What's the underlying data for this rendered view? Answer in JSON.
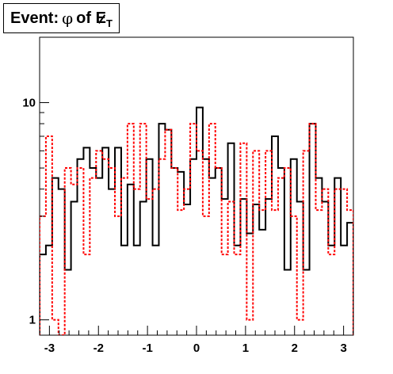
{
  "chart_data": {
    "type": "line",
    "title": {
      "prefix": "Event:",
      "symbol": "φ",
      "middle": "of",
      "quantity": "E",
      "subscript": "T"
    },
    "xlabel": "",
    "ylabel": "",
    "xlim": [
      -3.2,
      3.2
    ],
    "ylim": [
      0.85,
      20
    ],
    "ylog": true,
    "grid": false,
    "x_ticks": [
      {
        "v": -3,
        "label": "-3"
      },
      {
        "v": -2,
        "label": "-2"
      },
      {
        "v": -1,
        "label": "-1"
      },
      {
        "v": 0,
        "label": "0"
      },
      {
        "v": 1,
        "label": "1"
      },
      {
        "v": 2,
        "label": "2"
      },
      {
        "v": 3,
        "label": "3"
      }
    ],
    "y_ticks": [
      {
        "v": 1,
        "label": "1"
      },
      {
        "v": 10,
        "label": "10"
      }
    ],
    "bin_edges_range": [
      -3.2,
      3.2
    ],
    "series": [
      {
        "style": "solid",
        "color": "#000000",
        "values": [
          2,
          2.2,
          4.5,
          4,
          1.7,
          3.5,
          5.5,
          6.2,
          5,
          4.5,
          6.2,
          4,
          6.2,
          2.2,
          4.2,
          2.2,
          3.5,
          5.5,
          2.2,
          8,
          7.5,
          5,
          4.8,
          3.4,
          5.5,
          9.5,
          5.5,
          4.5,
          5,
          3.6,
          6.5,
          2.2,
          3.6,
          2.5,
          3.4,
          2.6,
          3.6,
          7,
          5,
          1.7,
          5.5,
          3.5,
          1.7,
          8,
          4.5,
          3.5,
          2.2,
          4.5,
          2.2,
          2.8
        ]
      },
      {
        "style": "dashed",
        "color": "#ff0000",
        "values": [
          3,
          7,
          1,
          0.5,
          5,
          4.2,
          5,
          2,
          4.5,
          6,
          5.5,
          5,
          3,
          4.5,
          8,
          4,
          8,
          3.6,
          4,
          5.5,
          7.5,
          5,
          3.2,
          4,
          8,
          6,
          3,
          8,
          5,
          2,
          3.5,
          2,
          6.5,
          1,
          6,
          3.2,
          6,
          3.2,
          4.5,
          5,
          3,
          1,
          6,
          8,
          3.2,
          4,
          2,
          4,
          4,
          3.2
        ]
      }
    ]
  }
}
